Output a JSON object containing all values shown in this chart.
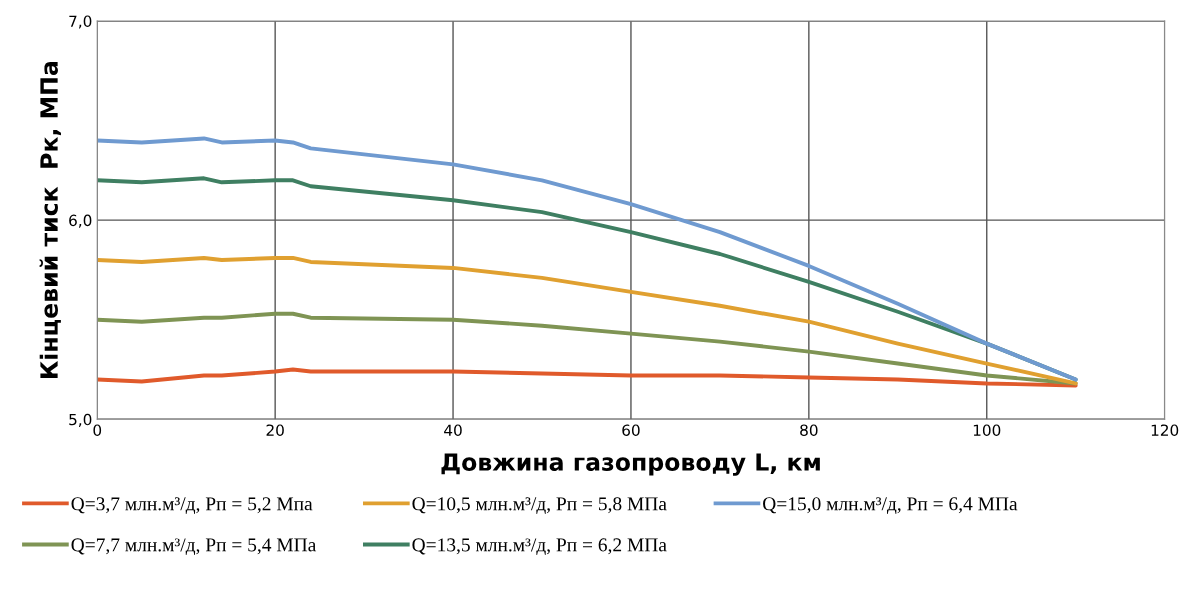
{
  "chart_data": {
    "type": "line",
    "xlabel": "Довжина газопроводу L, км",
    "ylabel": "Кінцевий тиск  Рк, МПа",
    "x": [
      0,
      5,
      12,
      14,
      20,
      22,
      24,
      40,
      50,
      60,
      70,
      80,
      90,
      100,
      110
    ],
    "series": [
      {
        "name": "Q=3,7 млн.м³/д, Рп = 5,2 Мпа",
        "color": "#e05a2b",
        "values": [
          5.2,
          5.19,
          5.22,
          5.22,
          5.24,
          5.25,
          5.24,
          5.24,
          5.23,
          5.22,
          5.22,
          5.21,
          5.2,
          5.18,
          5.17
        ]
      },
      {
        "name": "Q=7,7 млн.м³/д, Рп = 5,4 МПа",
        "color": "#7f9454",
        "values": [
          5.5,
          5.49,
          5.51,
          5.51,
          5.53,
          5.53,
          5.51,
          5.5,
          5.47,
          5.43,
          5.39,
          5.34,
          5.28,
          5.22,
          5.18
        ]
      },
      {
        "name": "Q=10,5 млн.м³/д, Рп = 5,8 МПа",
        "color": "#e0a030",
        "values": [
          5.8,
          5.79,
          5.81,
          5.8,
          5.81,
          5.81,
          5.79,
          5.76,
          5.71,
          5.64,
          5.57,
          5.49,
          5.38,
          5.28,
          5.18
        ]
      },
      {
        "name": "Q=13,5 млн.м³/д, Рп = 6,2 МПа",
        "color": "#3f7f62",
        "values": [
          6.2,
          6.19,
          6.21,
          6.19,
          6.2,
          6.2,
          6.17,
          6.1,
          6.04,
          5.94,
          5.83,
          5.69,
          5.54,
          5.38,
          5.2
        ]
      },
      {
        "name": "Q=15,0 млн.м³/д, Рп = 6,4 МПа",
        "color": "#6f9ad0",
        "values": [
          6.4,
          6.39,
          6.41,
          6.39,
          6.4,
          6.39,
          6.36,
          6.28,
          6.2,
          6.08,
          5.94,
          5.77,
          5.58,
          5.38,
          5.2
        ]
      }
    ],
    "xlim": [
      0,
      120
    ],
    "xticks": [
      0,
      20,
      40,
      60,
      80,
      100,
      120
    ],
    "ylim": [
      5,
      7
    ],
    "yticks": [
      {
        "value": 5,
        "label": "5,0"
      },
      {
        "value": 6,
        "label": "6,0"
      },
      {
        "value": 7,
        "label": "7,0"
      }
    ],
    "grid": true,
    "legend": "bottom",
    "marker": "none",
    "line_style": "solid"
  }
}
